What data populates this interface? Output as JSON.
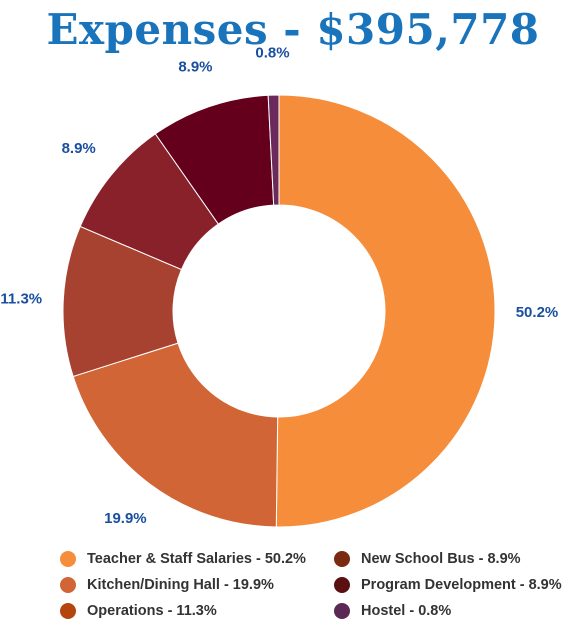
{
  "title": "Expenses - $395,778",
  "colors": {
    "title": "#1a74bb",
    "slice_label": "#1a4fa0"
  },
  "chart_data": {
    "type": "pie",
    "variant": "donut",
    "title": "Expenses - $395,778",
    "categories": [
      "Teacher & Staff Salaries",
      "Kitchen/Dining Hall",
      "Operations",
      "New School Bus",
      "Program Development",
      "Hostel"
    ],
    "values": [
      50.2,
      19.9,
      11.3,
      8.9,
      8.9,
      0.8
    ],
    "value_labels": [
      "50.2%",
      "19.9%",
      "11.3%",
      "8.9%",
      "8.9%",
      "0.8%"
    ],
    "slice_colors": [
      "#f58d3b",
      "#d16536",
      "#a84230",
      "#88212a",
      "#65001c",
      "#6b2a5c"
    ],
    "legend_colors": [
      "#f58d3b",
      "#d16536",
      "#b4450f",
      "#7a2a10",
      "#5a1010",
      "#5a2a55"
    ],
    "legend_entries": [
      "Teacher & Staff Salaries - 50.2%",
      "Kitchen/Dining Hall - 19.9%",
      "Operations - 11.3%",
      "New School Bus - 8.9%",
      "Program Development - 8.9%",
      "Hostel - 0.8%"
    ],
    "legend_position": "bottom",
    "start_angle_deg": 0,
    "direction": "clockwise"
  }
}
